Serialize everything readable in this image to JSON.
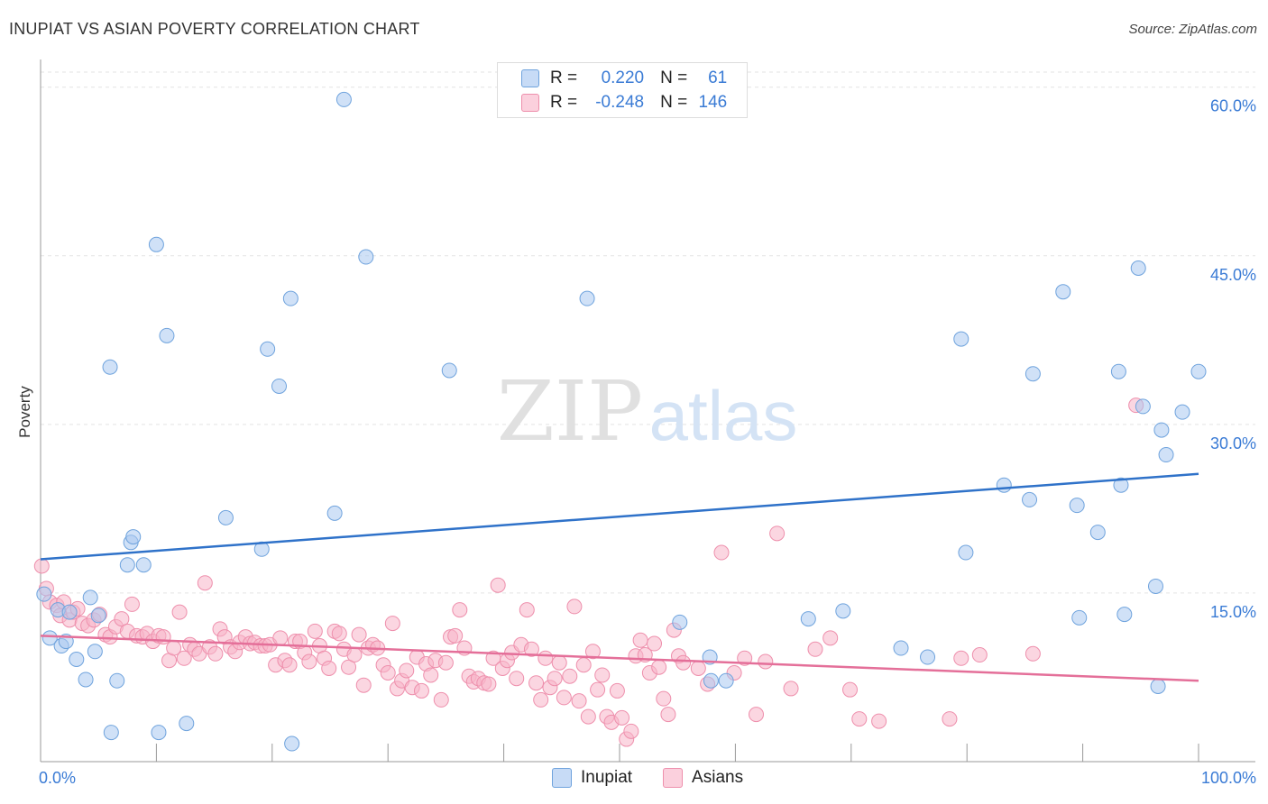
{
  "title": "INUPIAT VS ASIAN POVERTY CORRELATION CHART",
  "source": "Source: ZipAtlas.com",
  "watermark": {
    "zip": "ZIP",
    "atlas": "atlas"
  },
  "legend": {
    "r_label": "R =",
    "n_label": "N =",
    "rows": [
      {
        "r": "0.220",
        "n": "61",
        "color": "#a9c8f0"
      },
      {
        "r": "-0.248",
        "n": "146",
        "color": "#f7b5c8"
      }
    ]
  },
  "bottom_legend": [
    "Inupiat",
    "Asians"
  ],
  "colors": {
    "inupiat_fill": "#a9c8f0",
    "inupiat_stroke": "#6fa3dd",
    "inupiat_line": "#2f72c9",
    "asian_fill": "#f7b5c8",
    "asian_stroke": "#ee8fac",
    "asian_line": "#e46f99",
    "axis_text": "#3a7bd5"
  },
  "chart_data": {
    "type": "scatter",
    "xlabel": "",
    "ylabel": "Poverty",
    "xlim": [
      0,
      100
    ],
    "ylim": [
      0,
      61.5
    ],
    "x_tick_labels": [
      "0.0%",
      "100.0%"
    ],
    "y_ticks": [
      15,
      30,
      45,
      60
    ],
    "y_tick_labels": [
      "15.0%",
      "30.0%",
      "45.0%",
      "60.0%"
    ],
    "grid": true,
    "series": [
      {
        "name": "Inupiat",
        "trend": [
          [
            0,
            18.0
          ],
          [
            100,
            25.6
          ]
        ],
        "points": [
          [
            0.3,
            14.9
          ],
          [
            0.8,
            11.0
          ],
          [
            1.5,
            13.5
          ],
          [
            1.8,
            10.3
          ],
          [
            2.2,
            10.7
          ],
          [
            2.5,
            13.3
          ],
          [
            3.1,
            9.1
          ],
          [
            3.9,
            7.3
          ],
          [
            4.3,
            14.6
          ],
          [
            4.7,
            9.8
          ],
          [
            5.0,
            13.0
          ],
          [
            6.0,
            35.1
          ],
          [
            6.1,
            2.6
          ],
          [
            6.6,
            7.2
          ],
          [
            7.5,
            17.5
          ],
          [
            7.8,
            19.5
          ],
          [
            8.0,
            20.0
          ],
          [
            8.9,
            17.5
          ],
          [
            10.0,
            46.0
          ],
          [
            10.2,
            2.6
          ],
          [
            10.9,
            37.9
          ],
          [
            12.6,
            3.4
          ],
          [
            16.0,
            21.7
          ],
          [
            19.1,
            18.9
          ],
          [
            19.6,
            36.7
          ],
          [
            20.6,
            33.4
          ],
          [
            21.6,
            41.2
          ],
          [
            21.7,
            1.6
          ],
          [
            25.4,
            22.1
          ],
          [
            26.2,
            58.9
          ],
          [
            28.1,
            44.9
          ],
          [
            35.3,
            34.8
          ],
          [
            47.2,
            41.2
          ],
          [
            55.2,
            12.4
          ],
          [
            57.8,
            9.3
          ],
          [
            57.9,
            7.2
          ],
          [
            59.2,
            7.2
          ],
          [
            66.3,
            12.7
          ],
          [
            69.3,
            13.4
          ],
          [
            74.3,
            10.1
          ],
          [
            76.6,
            9.3
          ],
          [
            79.5,
            37.6
          ],
          [
            79.9,
            18.6
          ],
          [
            83.2,
            24.6
          ],
          [
            85.4,
            23.3
          ],
          [
            85.7,
            34.5
          ],
          [
            88.3,
            41.8
          ],
          [
            89.5,
            22.8
          ],
          [
            89.7,
            12.8
          ],
          [
            91.3,
            20.4
          ],
          [
            93.1,
            34.7
          ],
          [
            93.3,
            24.6
          ],
          [
            93.6,
            13.1
          ],
          [
            94.8,
            43.9
          ],
          [
            95.2,
            31.6
          ],
          [
            96.3,
            15.6
          ],
          [
            96.5,
            6.7
          ],
          [
            96.8,
            29.5
          ],
          [
            97.2,
            27.3
          ],
          [
            98.6,
            31.1
          ],
          [
            100.0,
            34.7
          ]
        ]
      },
      {
        "name": "Asians",
        "trend": [
          [
            0,
            11.2
          ],
          [
            100,
            7.2
          ]
        ],
        "points": [
          [
            0.1,
            17.4
          ],
          [
            0.5,
            15.4
          ],
          [
            0.8,
            14.2
          ],
          [
            1.4,
            13.9
          ],
          [
            1.7,
            13.0
          ],
          [
            2.0,
            14.2
          ],
          [
            2.5,
            12.6
          ],
          [
            2.8,
            13.3
          ],
          [
            3.2,
            13.6
          ],
          [
            3.6,
            12.3
          ],
          [
            4.1,
            12.1
          ],
          [
            4.6,
            12.6
          ],
          [
            5.1,
            13.1
          ],
          [
            5.6,
            11.3
          ],
          [
            6.0,
            11.1
          ],
          [
            6.5,
            12.0
          ],
          [
            7.0,
            12.7
          ],
          [
            7.5,
            11.6
          ],
          [
            7.9,
            14.0
          ],
          [
            8.3,
            11.2
          ],
          [
            8.8,
            11.1
          ],
          [
            9.2,
            11.4
          ],
          [
            9.7,
            10.7
          ],
          [
            10.2,
            11.2
          ],
          [
            10.6,
            11.1
          ],
          [
            11.1,
            9.0
          ],
          [
            11.5,
            10.1
          ],
          [
            12.0,
            13.3
          ],
          [
            12.4,
            9.2
          ],
          [
            12.9,
            10.4
          ],
          [
            13.3,
            10.0
          ],
          [
            13.7,
            9.6
          ],
          [
            14.2,
            15.9
          ],
          [
            14.6,
            10.2
          ],
          [
            15.1,
            9.6
          ],
          [
            15.5,
            11.8
          ],
          [
            15.9,
            11.1
          ],
          [
            16.4,
            10.2
          ],
          [
            16.8,
            9.8
          ],
          [
            17.2,
            10.6
          ],
          [
            17.7,
            11.1
          ],
          [
            18.1,
            10.5
          ],
          [
            18.5,
            10.6
          ],
          [
            19.0,
            10.3
          ],
          [
            19.4,
            10.3
          ],
          [
            19.8,
            10.4
          ],
          [
            20.3,
            8.6
          ],
          [
            20.7,
            11.0
          ],
          [
            21.1,
            9.0
          ],
          [
            21.5,
            8.6
          ],
          [
            22.0,
            10.7
          ],
          [
            22.4,
            10.7
          ],
          [
            22.8,
            9.7
          ],
          [
            23.2,
            8.9
          ],
          [
            23.7,
            11.6
          ],
          [
            24.1,
            10.3
          ],
          [
            24.5,
            9.2
          ],
          [
            24.9,
            8.3
          ],
          [
            25.4,
            11.6
          ],
          [
            25.8,
            11.4
          ],
          [
            26.2,
            10.0
          ],
          [
            26.6,
            8.4
          ],
          [
            27.1,
            9.5
          ],
          [
            27.5,
            11.3
          ],
          [
            27.9,
            6.8
          ],
          [
            28.3,
            10.1
          ],
          [
            28.7,
            10.4
          ],
          [
            29.1,
            10.1
          ],
          [
            29.6,
            8.6
          ],
          [
            30.0,
            7.9
          ],
          [
            30.4,
            12.3
          ],
          [
            30.8,
            6.5
          ],
          [
            31.2,
            7.2
          ],
          [
            31.6,
            8.1
          ],
          [
            32.1,
            6.6
          ],
          [
            32.5,
            9.3
          ],
          [
            32.9,
            6.3
          ],
          [
            33.3,
            8.7
          ],
          [
            33.7,
            7.7
          ],
          [
            34.1,
            9.0
          ],
          [
            34.6,
            5.5
          ],
          [
            35.0,
            8.8
          ],
          [
            35.4,
            11.1
          ],
          [
            35.8,
            11.2
          ],
          [
            36.2,
            13.5
          ],
          [
            36.6,
            10.1
          ],
          [
            37.0,
            7.6
          ],
          [
            37.4,
            7.1
          ],
          [
            37.8,
            7.4
          ],
          [
            38.3,
            7.0
          ],
          [
            38.7,
            6.9
          ],
          [
            39.1,
            9.2
          ],
          [
            39.5,
            15.7
          ],
          [
            39.9,
            8.3
          ],
          [
            40.3,
            9.0
          ],
          [
            40.7,
            9.7
          ],
          [
            41.1,
            7.4
          ],
          [
            41.5,
            10.4
          ],
          [
            42.0,
            13.5
          ],
          [
            42.4,
            10.0
          ],
          [
            42.8,
            7.0
          ],
          [
            43.2,
            5.5
          ],
          [
            43.6,
            9.2
          ],
          [
            44.0,
            6.6
          ],
          [
            44.4,
            7.4
          ],
          [
            44.8,
            8.8
          ],
          [
            45.2,
            5.7
          ],
          [
            45.7,
            7.6
          ],
          [
            46.1,
            13.8
          ],
          [
            46.5,
            5.4
          ],
          [
            46.9,
            8.6
          ],
          [
            47.3,
            4.0
          ],
          [
            47.7,
            9.8
          ],
          [
            48.1,
            6.4
          ],
          [
            48.5,
            7.7
          ],
          [
            48.9,
            4.0
          ],
          [
            49.3,
            3.5
          ],
          [
            49.8,
            6.3
          ],
          [
            50.2,
            3.9
          ],
          [
            50.6,
            2.0
          ],
          [
            51.0,
            2.7
          ],
          [
            51.4,
            9.4
          ],
          [
            51.8,
            10.8
          ],
          [
            52.2,
            9.5
          ],
          [
            52.6,
            7.9
          ],
          [
            53.0,
            10.5
          ],
          [
            53.4,
            8.4
          ],
          [
            53.8,
            5.6
          ],
          [
            54.2,
            4.2
          ],
          [
            54.7,
            11.7
          ],
          [
            55.1,
            9.4
          ],
          [
            55.5,
            8.8
          ],
          [
            56.8,
            8.3
          ],
          [
            57.6,
            6.9
          ],
          [
            58.8,
            18.6
          ],
          [
            59.9,
            7.9
          ],
          [
            60.8,
            9.2
          ],
          [
            61.8,
            4.2
          ],
          [
            62.6,
            8.9
          ],
          [
            63.6,
            20.3
          ],
          [
            64.8,
            6.5
          ],
          [
            66.9,
            10.0
          ],
          [
            68.2,
            11.0
          ],
          [
            69.9,
            6.4
          ],
          [
            70.7,
            3.8
          ],
          [
            72.4,
            3.6
          ],
          [
            78.5,
            3.8
          ],
          [
            79.5,
            9.2
          ],
          [
            81.1,
            9.5
          ],
          [
            85.7,
            9.6
          ],
          [
            94.6,
            31.7
          ]
        ]
      }
    ]
  }
}
